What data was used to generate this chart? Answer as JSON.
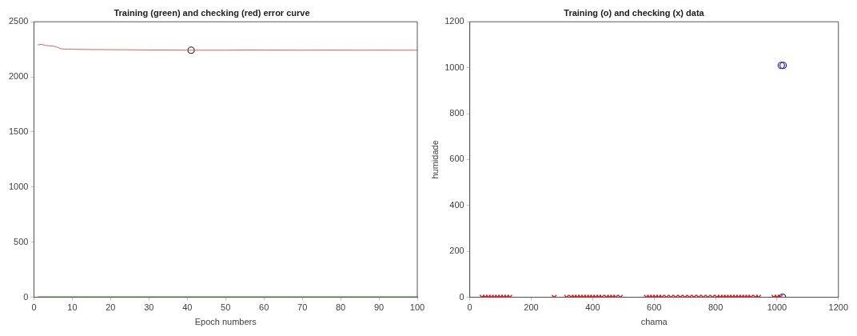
{
  "chart_data": [
    {
      "type": "line",
      "title": "Training (green) and checking (red) error curve",
      "xlabel": "Epoch numbers",
      "xlim": [
        0,
        100
      ],
      "xticks": [
        0,
        10,
        20,
        30,
        40,
        50,
        60,
        70,
        80,
        90,
        100
      ],
      "ylim": [
        0,
        2500
      ],
      "yticks": [
        0,
        500,
        1000,
        1500,
        2000,
        2500
      ],
      "grid": false,
      "series": [
        {
          "color": "#e06060",
          "marker": "none",
          "line_style": "solid",
          "x": [
            1,
            2,
            3,
            4,
            5,
            6,
            7,
            8,
            9,
            10,
            15,
            20,
            25,
            30,
            35,
            40,
            45,
            50,
            55,
            60,
            65,
            70,
            75,
            80,
            85,
            90,
            95,
            100
          ],
          "values": [
            2290,
            2295,
            2285,
            2282,
            2280,
            2270,
            2255,
            2252,
            2252,
            2250,
            2248,
            2247,
            2246,
            2244,
            2244,
            2242,
            2242,
            2242,
            2244,
            2243,
            2243,
            2242,
            2243,
            2243,
            2242,
            2243,
            2242,
            2242
          ]
        },
        {
          "color": "#40b040",
          "marker": "none",
          "line_style": "solid",
          "x": [
            1,
            10,
            20,
            30,
            40,
            50,
            60,
            70,
            80,
            90,
            100
          ],
          "values": [
            5,
            5,
            5,
            5,
            5,
            5,
            5,
            5,
            5,
            5,
            5
          ]
        },
        {
          "type": "scatter",
          "color": "#202020",
          "marker": "circle",
          "x": [
            41
          ],
          "values": [
            2242
          ]
        }
      ]
    },
    {
      "type": "scatter",
      "title": "Training (o) and checking (x) data",
      "xlabel": "chama",
      "ylabel": "humidade",
      "xlim": [
        0,
        1200
      ],
      "xticks": [
        0,
        200,
        400,
        600,
        800,
        1000,
        1200
      ],
      "ylim": [
        0,
        1200
      ],
      "yticks": [
        0,
        200,
        400,
        600,
        800,
        1000,
        1200
      ],
      "grid": false,
      "series": [
        {
          "color": "#ff0000",
          "marker": "cross",
          "x": [
            40,
            50,
            60,
            70,
            80,
            90,
            100,
            110,
            120,
            130,
            275,
            315,
            330,
            340,
            350,
            360,
            370,
            380,
            390,
            400,
            410,
            420,
            430,
            445,
            455,
            465,
            475,
            490,
            575,
            585,
            595,
            605,
            615,
            625,
            640,
            655,
            670,
            685,
            700,
            715,
            730,
            745,
            760,
            775,
            790,
            805,
            815,
            825,
            835,
            845,
            855,
            865,
            875,
            885,
            895,
            905,
            915,
            930,
            940,
            990,
            1000,
            1010
          ],
          "values": [
            0,
            0,
            0,
            0,
            0,
            0,
            0,
            0,
            0,
            0,
            0,
            0,
            0,
            0,
            0,
            0,
            0,
            0,
            0,
            0,
            0,
            0,
            0,
            0,
            0,
            0,
            0,
            0,
            0,
            0,
            0,
            0,
            0,
            0,
            0,
            0,
            0,
            0,
            0,
            0,
            0,
            0,
            0,
            0,
            0,
            0,
            0,
            0,
            0,
            0,
            0,
            0,
            0,
            0,
            0,
            0,
            0,
            0,
            0,
            0,
            0,
            0
          ]
        },
        {
          "color": "#2020d0",
          "marker": "circle",
          "x": [
            1014,
            1020,
            1018
          ],
          "values": [
            1010,
            1010,
            0
          ]
        }
      ]
    }
  ]
}
